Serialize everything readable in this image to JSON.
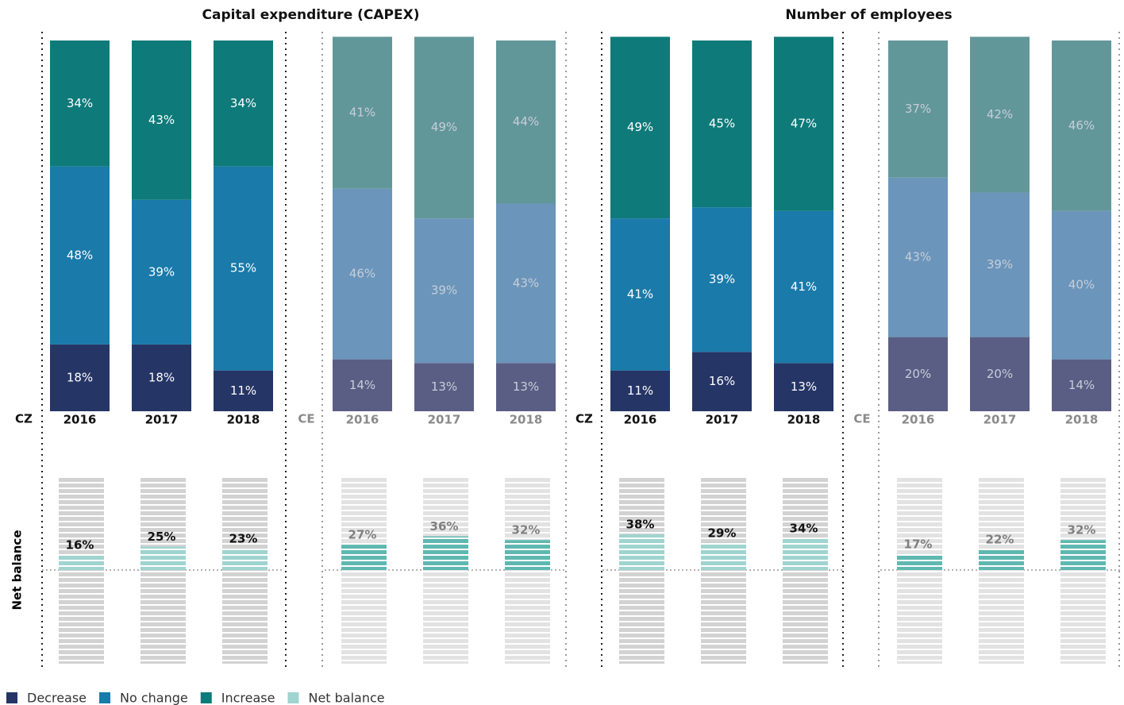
{
  "chart_data": [
    {
      "type": "stacked_bar",
      "title": "Capital expenditure (CAPEX)",
      "ylim": [
        0,
        100
      ],
      "net_ylim": [
        -100,
        100
      ],
      "panels": [
        {
          "label": "CZ",
          "categories": [
            "2016",
            "2017",
            "2018"
          ],
          "series": [
            {
              "name": "Decrease",
              "color": "#253566",
              "values": [
                18,
                18,
                11
              ],
              "value_labels": [
                "18%",
                "18%",
                "11%"
              ]
            },
            {
              "name": "No change",
              "color": "#1a7aaa",
              "values": [
                48,
                39,
                55
              ],
              "value_labels": [
                "48%",
                "39%",
                "55%"
              ]
            },
            {
              "name": "Increase",
              "color": "#0e7a7a",
              "values": [
                34,
                43,
                34
              ],
              "value_labels": [
                "34%",
                "43%",
                "34%"
              ]
            }
          ],
          "net_balance": {
            "name": "Net balance",
            "color": "#9fd4cf",
            "values": [
              16,
              25,
              23
            ],
            "value_labels": [
              "16%",
              "25%",
              "23%"
            ]
          }
        },
        {
          "label": "CE",
          "categories": [
            "2016",
            "2017",
            "2018"
          ],
          "series": [
            {
              "color": "#5a5e85",
              "values": [
                14,
                13,
                13
              ],
              "value_labels": [
                "14%",
                "13%",
                "13%"
              ]
            },
            {
              "color": "#6b95bb",
              "values": [
                46,
                39,
                43
              ],
              "value_labels": [
                "46%",
                "39%",
                "43%"
              ]
            },
            {
              "color": "#62979a",
              "values": [
                41,
                49,
                44
              ],
              "value_labels": [
                "41%",
                "49%",
                "44%"
              ]
            }
          ],
          "net_balance": {
            "color": "#5fb8b0",
            "values": [
              27,
              36,
              32
            ],
            "value_labels": [
              "27%",
              "36%",
              "32%"
            ]
          }
        }
      ]
    },
    {
      "type": "stacked_bar",
      "title": "Number of employees",
      "ylim": [
        0,
        100
      ],
      "net_ylim": [
        -100,
        100
      ],
      "panels": [
        {
          "label": "CZ",
          "categories": [
            "2016",
            "2017",
            "2018"
          ],
          "series": [
            {
              "color": "#253566",
              "values": [
                11,
                16,
                13
              ],
              "value_labels": [
                "11%",
                "16%",
                "13%"
              ]
            },
            {
              "color": "#1a7aaa",
              "values": [
                41,
                39,
                41
              ],
              "value_labels": [
                "41%",
                "39%",
                "41%"
              ]
            },
            {
              "color": "#0e7a7a",
              "values": [
                49,
                45,
                47
              ],
              "value_labels": [
                "49%",
                "45%",
                "47%"
              ]
            }
          ],
          "net_balance": {
            "color": "#9fd4cf",
            "values": [
              38,
              29,
              34
            ],
            "value_labels": [
              "38%",
              "29%",
              "34%"
            ]
          }
        },
        {
          "label": "CE",
          "categories": [
            "2016",
            "2017",
            "2018"
          ],
          "series": [
            {
              "color": "#5a5e85",
              "values": [
                20,
                20,
                14
              ],
              "value_labels": [
                "20%",
                "20%",
                "14%"
              ]
            },
            {
              "color": "#6b95bb",
              "values": [
                43,
                39,
                40
              ],
              "value_labels": [
                "43%",
                "39%",
                "40%"
              ]
            },
            {
              "color": "#62979a",
              "values": [
                37,
                42,
                46
              ],
              "value_labels": [
                "37%",
                "42%",
                "46%"
              ]
            }
          ],
          "net_balance": {
            "color": "#5fb8b0",
            "values": [
              17,
              22,
              32
            ],
            "value_labels": [
              "17%",
              "22%",
              "32%"
            ]
          }
        }
      ]
    }
  ]
}
